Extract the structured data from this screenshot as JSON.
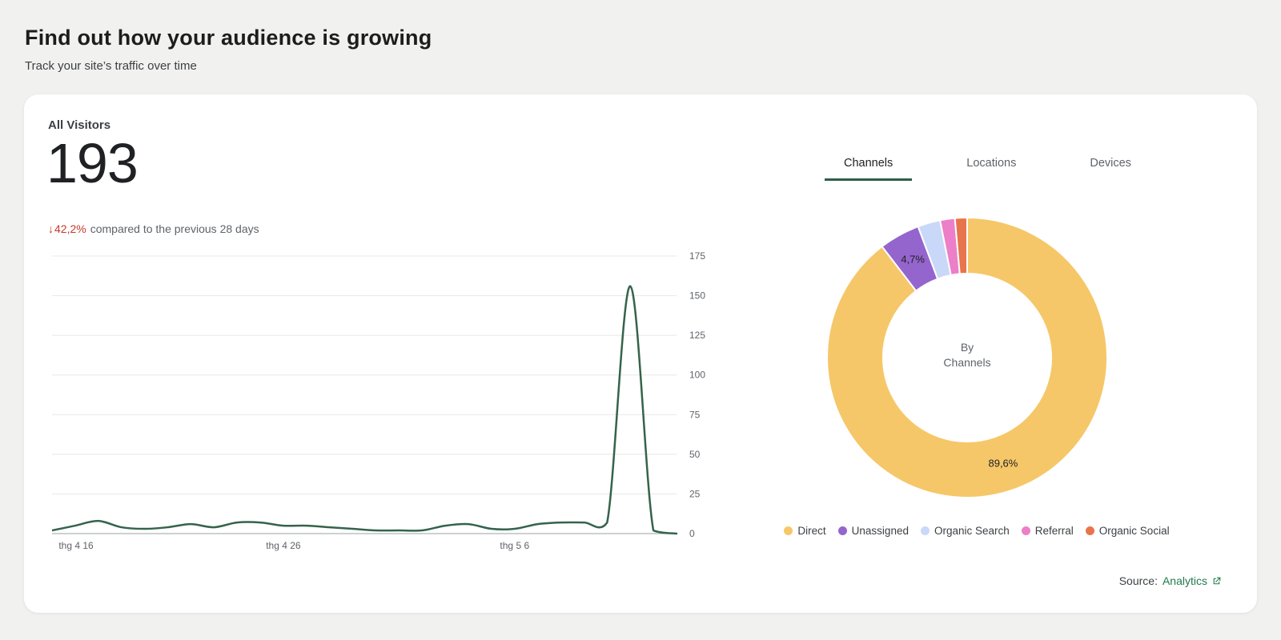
{
  "page": {
    "title": "Find out how your audience is growing",
    "subtitle": "Track your site’s traffic over time"
  },
  "card": {
    "metric_label": "All Visitors",
    "metric_value": "193",
    "change": {
      "arrow": "↓",
      "percent": "42,2%",
      "text": "compared to the previous 28 days",
      "negative_color": "#c5392b"
    },
    "tabs": [
      {
        "label": "Channels",
        "active": true
      },
      {
        "label": "Locations",
        "active": false
      },
      {
        "label": "Devices",
        "active": false
      }
    ],
    "source": {
      "prefix": "Source:",
      "link": "Analytics"
    }
  },
  "colors": {
    "accent_green": "#2c5f46",
    "link_green": "#217a4d",
    "negative_red": "#c5392b"
  },
  "chart_data": [
    {
      "type": "line",
      "title": "All Visitors over the last 28 days",
      "x_tick_labels": [
        {
          "index": 0,
          "label": "thg 4 16"
        },
        {
          "index": 10,
          "label": "thg 4 26"
        },
        {
          "index": 20,
          "label": "thg 5 6"
        }
      ],
      "values": [
        2,
        5,
        8,
        4,
        3,
        4,
        6,
        4,
        7,
        7,
        5,
        5,
        4,
        3,
        2,
        2,
        2,
        5,
        6,
        3,
        3,
        6,
        7,
        7,
        7,
        156,
        2,
        0
      ],
      "ylim": [
        0,
        175
      ],
      "y_ticks": [
        0,
        25,
        50,
        75,
        100,
        125,
        150,
        175
      ],
      "line_color": "#35634c",
      "grid": true,
      "y_axis_position": "right"
    },
    {
      "type": "donut",
      "title": "By Channels",
      "center_label": [
        "By",
        "Channels"
      ],
      "slices": [
        {
          "name": "Direct",
          "value": 89.6,
          "label": "89,6%",
          "color": "#f6c768"
        },
        {
          "name": "Unassigned",
          "value": 4.7,
          "label": "4,7%",
          "color": "#9565ce"
        },
        {
          "name": "Organic Search",
          "value": 2.6,
          "color": "#c9d8f8"
        },
        {
          "name": "Referral",
          "value": 1.7,
          "color": "#ec7fc7"
        },
        {
          "name": "Organic Social",
          "value": 1.4,
          "color": "#e8744c"
        }
      ],
      "legend_position": "bottom"
    }
  ]
}
